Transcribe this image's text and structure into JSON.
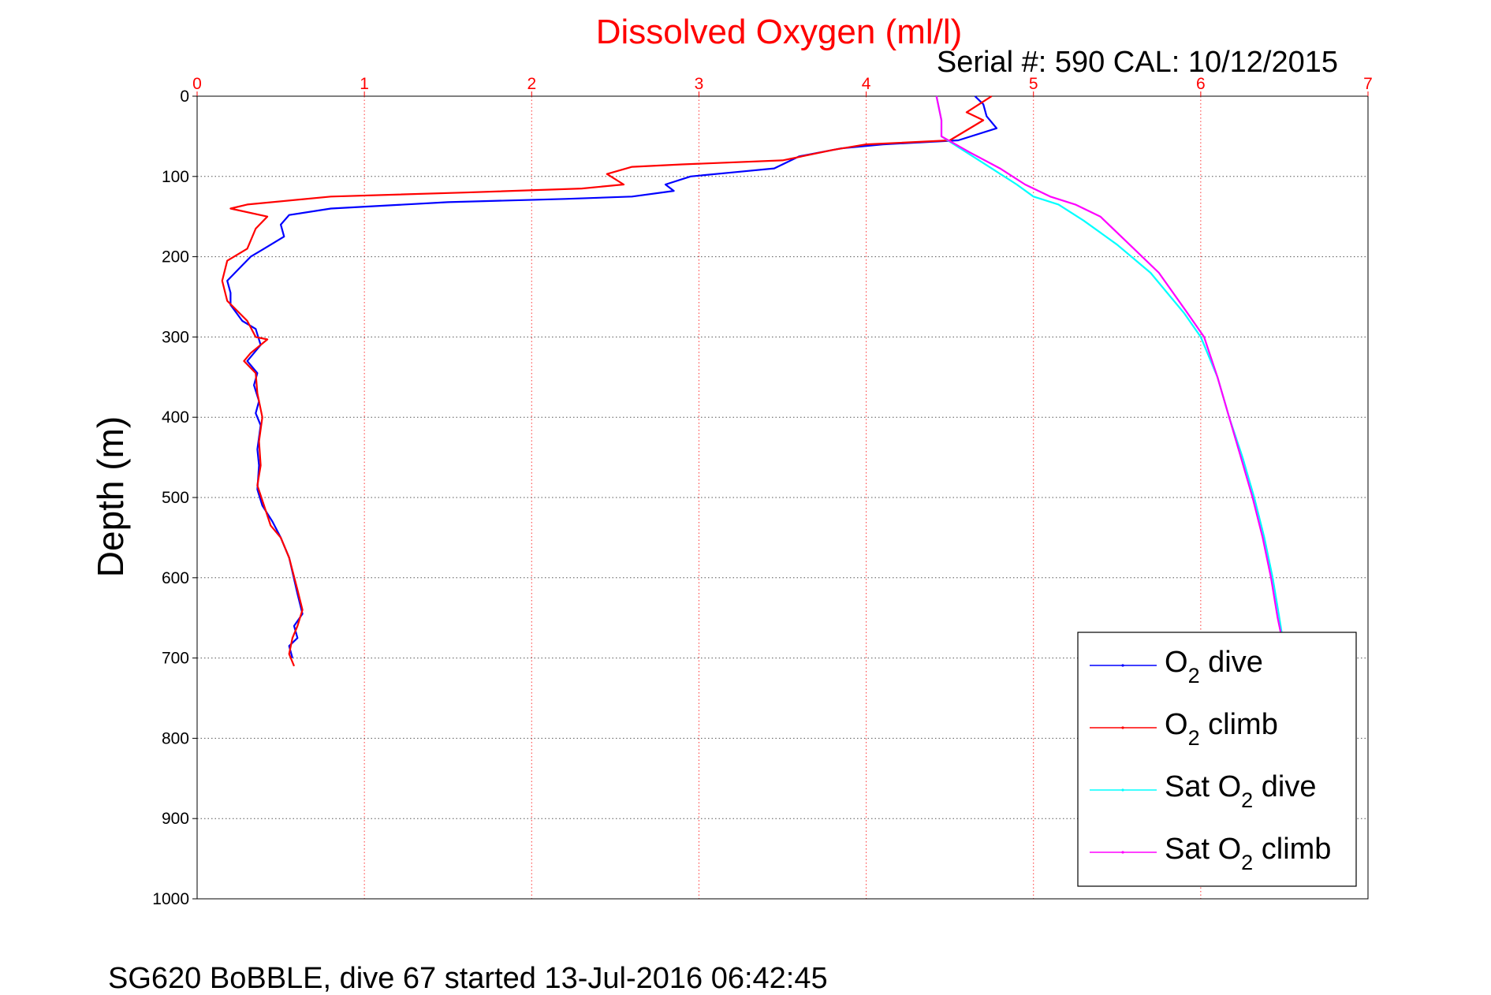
{
  "chart_data": {
    "type": "line",
    "title": "Dissolved Oxygen (ml/l)",
    "annotation": "Serial #: 590  CAL: 10/12/2015",
    "ylabel": "Depth (m)",
    "footer": "SG620 BoBBLE, dive 67 started 13-Jul-2016 06:42:45",
    "xlim": [
      0,
      7
    ],
    "ylim": [
      0,
      1000
    ],
    "y_reversed": true,
    "x_axis_position": "top",
    "x_ticks": [
      "0",
      "1",
      "2",
      "3",
      "4",
      "5",
      "6",
      "7"
    ],
    "y_ticks": [
      "0",
      "100",
      "200",
      "300",
      "400",
      "500",
      "600",
      "700",
      "800",
      "900",
      "1000"
    ],
    "grid": true,
    "legend_position": "lower-right",
    "series": [
      {
        "name": "O2 dive",
        "legend_main": "O",
        "legend_sub": "2",
        "legend_rest": " dive",
        "color": "#0000ff",
        "points": [
          [
            4.65,
            0
          ],
          [
            4.7,
            10
          ],
          [
            4.72,
            25
          ],
          [
            4.78,
            40
          ],
          [
            4.55,
            55
          ],
          [
            4.1,
            60
          ],
          [
            3.85,
            65
          ],
          [
            3.6,
            75
          ],
          [
            3.45,
            90
          ],
          [
            3.2,
            95
          ],
          [
            2.95,
            100
          ],
          [
            2.8,
            110
          ],
          [
            2.85,
            118
          ],
          [
            2.6,
            125
          ],
          [
            2.2,
            128
          ],
          [
            1.5,
            132
          ],
          [
            0.8,
            140
          ],
          [
            0.55,
            148
          ],
          [
            0.5,
            160
          ],
          [
            0.52,
            175
          ],
          [
            0.4,
            190
          ],
          [
            0.32,
            200
          ],
          [
            0.25,
            215
          ],
          [
            0.18,
            230
          ],
          [
            0.2,
            245
          ],
          [
            0.2,
            260
          ],
          [
            0.27,
            280
          ],
          [
            0.35,
            290
          ],
          [
            0.38,
            310
          ],
          [
            0.3,
            330
          ],
          [
            0.36,
            345
          ],
          [
            0.34,
            360
          ],
          [
            0.37,
            380
          ],
          [
            0.35,
            395
          ],
          [
            0.38,
            410
          ],
          [
            0.36,
            440
          ],
          [
            0.37,
            460
          ],
          [
            0.36,
            490
          ],
          [
            0.39,
            510
          ],
          [
            0.45,
            530
          ],
          [
            0.5,
            550
          ],
          [
            0.55,
            575
          ],
          [
            0.6,
            620
          ],
          [
            0.63,
            645
          ],
          [
            0.58,
            660
          ],
          [
            0.6,
            675
          ],
          [
            0.55,
            685
          ],
          [
            0.57,
            700
          ]
        ]
      },
      {
        "name": "O2 climb",
        "legend_main": "O",
        "legend_sub": "2",
        "legend_rest": " climb",
        "color": "#ff0000",
        "points": [
          [
            4.75,
            0
          ],
          [
            4.6,
            20
          ],
          [
            4.7,
            30
          ],
          [
            4.5,
            55
          ],
          [
            4.0,
            60
          ],
          [
            3.8,
            67
          ],
          [
            3.5,
            80
          ],
          [
            2.9,
            85
          ],
          [
            2.6,
            88
          ],
          [
            2.45,
            97
          ],
          [
            2.55,
            110
          ],
          [
            2.3,
            115
          ],
          [
            1.6,
            120
          ],
          [
            0.8,
            125
          ],
          [
            0.3,
            135
          ],
          [
            0.2,
            140
          ],
          [
            0.42,
            150
          ],
          [
            0.35,
            165
          ],
          [
            0.3,
            190
          ],
          [
            0.18,
            205
          ],
          [
            0.15,
            230
          ],
          [
            0.18,
            255
          ],
          [
            0.3,
            280
          ],
          [
            0.35,
            300
          ],
          [
            0.42,
            303
          ],
          [
            0.32,
            320
          ],
          [
            0.28,
            330
          ],
          [
            0.35,
            345
          ],
          [
            0.36,
            370
          ],
          [
            0.39,
            400
          ],
          [
            0.37,
            430
          ],
          [
            0.38,
            460
          ],
          [
            0.36,
            485
          ],
          [
            0.4,
            510
          ],
          [
            0.44,
            535
          ],
          [
            0.5,
            550
          ],
          [
            0.55,
            575
          ],
          [
            0.6,
            615
          ],
          [
            0.63,
            640
          ],
          [
            0.6,
            660
          ],
          [
            0.57,
            675
          ],
          [
            0.55,
            695
          ],
          [
            0.58,
            710
          ]
        ]
      },
      {
        "name": "Sat O2 dive",
        "legend_main": "Sat O",
        "legend_sub": "2",
        "legend_rest": " dive",
        "color": "#00ffff",
        "points": [
          [
            4.42,
            0
          ],
          [
            4.45,
            30
          ],
          [
            4.45,
            50
          ],
          [
            4.6,
            70
          ],
          [
            4.75,
            90
          ],
          [
            4.9,
            110
          ],
          [
            5.0,
            125
          ],
          [
            5.15,
            135
          ],
          [
            5.3,
            155
          ],
          [
            5.5,
            185
          ],
          [
            5.7,
            220
          ],
          [
            5.9,
            270
          ],
          [
            6.0,
            300
          ],
          [
            6.1,
            350
          ],
          [
            6.17,
            400
          ],
          [
            6.25,
            450
          ],
          [
            6.32,
            500
          ],
          [
            6.38,
            550
          ],
          [
            6.43,
            600
          ],
          [
            6.47,
            650
          ],
          [
            6.5,
            690
          ]
        ]
      },
      {
        "name": "Sat O2 climb",
        "legend_main": "Sat O",
        "legend_sub": "2",
        "legend_rest": " climb",
        "color": "#ff00ff",
        "points": [
          [
            4.42,
            0
          ],
          [
            4.45,
            30
          ],
          [
            4.45,
            50
          ],
          [
            4.62,
            70
          ],
          [
            4.8,
            90
          ],
          [
            4.95,
            110
          ],
          [
            5.1,
            125
          ],
          [
            5.25,
            135
          ],
          [
            5.4,
            150
          ],
          [
            5.55,
            180
          ],
          [
            5.75,
            220
          ],
          [
            5.92,
            270
          ],
          [
            6.02,
            300
          ],
          [
            6.1,
            350
          ],
          [
            6.17,
            400
          ],
          [
            6.24,
            450
          ],
          [
            6.31,
            500
          ],
          [
            6.37,
            550
          ],
          [
            6.42,
            600
          ],
          [
            6.46,
            650
          ],
          [
            6.5,
            690
          ]
        ]
      }
    ]
  }
}
